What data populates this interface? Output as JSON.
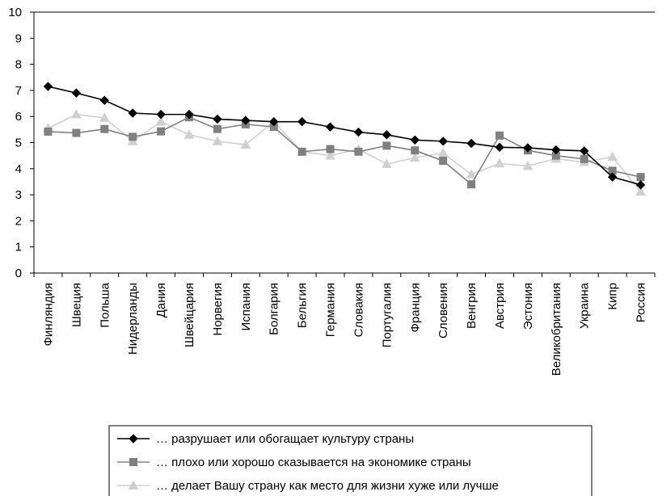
{
  "chart_data": {
    "type": "line",
    "ylim": [
      0,
      10
    ],
    "yticks": [
      0,
      1,
      2,
      3,
      4,
      5,
      6,
      7,
      8,
      9,
      10
    ],
    "grid": "horizontal top line only",
    "legend_position": "bottom",
    "categories": [
      "Финляндия",
      "Швеция",
      "Польша",
      "Нидерланды",
      "Дания",
      "Швейцария",
      "Норвегия",
      "Испания",
      "Болгария",
      "Бельгия",
      "Германия",
      "Словакия",
      "Португалия",
      "Франция",
      "Словения",
      "Венгрия",
      "Австрия",
      "Эстония",
      "Великобритания",
      "Украина",
      "Кипр",
      "Россия"
    ],
    "series": [
      {
        "name": "… разрушает или обогащает культуру страны",
        "marker": "diamond",
        "color": "#000000",
        "values": [
          7.15,
          6.9,
          6.62,
          6.13,
          6.08,
          6.08,
          5.9,
          5.85,
          5.8,
          5.8,
          5.6,
          5.4,
          5.3,
          5.1,
          5.05,
          4.97,
          4.82,
          4.8,
          4.72,
          4.68,
          3.68,
          3.38
        ]
      },
      {
        "name": "… плохо или хорошо сказывается на экономике страны",
        "marker": "square",
        "color": "#808080",
        "values": [
          5.42,
          5.37,
          5.52,
          5.22,
          5.43,
          5.97,
          5.52,
          5.7,
          5.6,
          4.65,
          4.75,
          4.65,
          4.88,
          4.7,
          4.3,
          3.4,
          5.27,
          4.7,
          4.5,
          4.37,
          3.92,
          3.68
        ]
      },
      {
        "name": "… делает Вашу страну как место для жизни хуже или лучше",
        "marker": "triangle",
        "color": "#d0d0d0",
        "values": [
          5.55,
          6.08,
          5.95,
          5.05,
          5.8,
          5.3,
          5.05,
          4.92,
          5.8,
          4.65,
          4.5,
          4.75,
          4.18,
          4.42,
          4.6,
          3.78,
          4.2,
          4.1,
          4.38,
          4.25,
          4.45,
          3.12
        ]
      }
    ]
  }
}
